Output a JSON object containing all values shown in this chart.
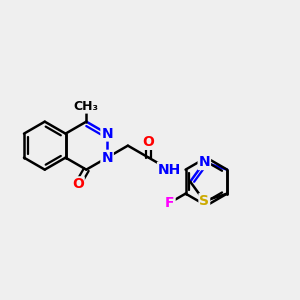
{
  "bg_color": "#efefef",
  "bond_color": "#000000",
  "bond_width": 1.8,
  "atom_colors": {
    "N": "#0000ff",
    "O": "#ff0000",
    "S": "#ccaa00",
    "F": "#ff00ff",
    "C": "#000000"
  },
  "font_size": 10,
  "fig_size": [
    3.0,
    3.0
  ],
  "dpi": 100
}
